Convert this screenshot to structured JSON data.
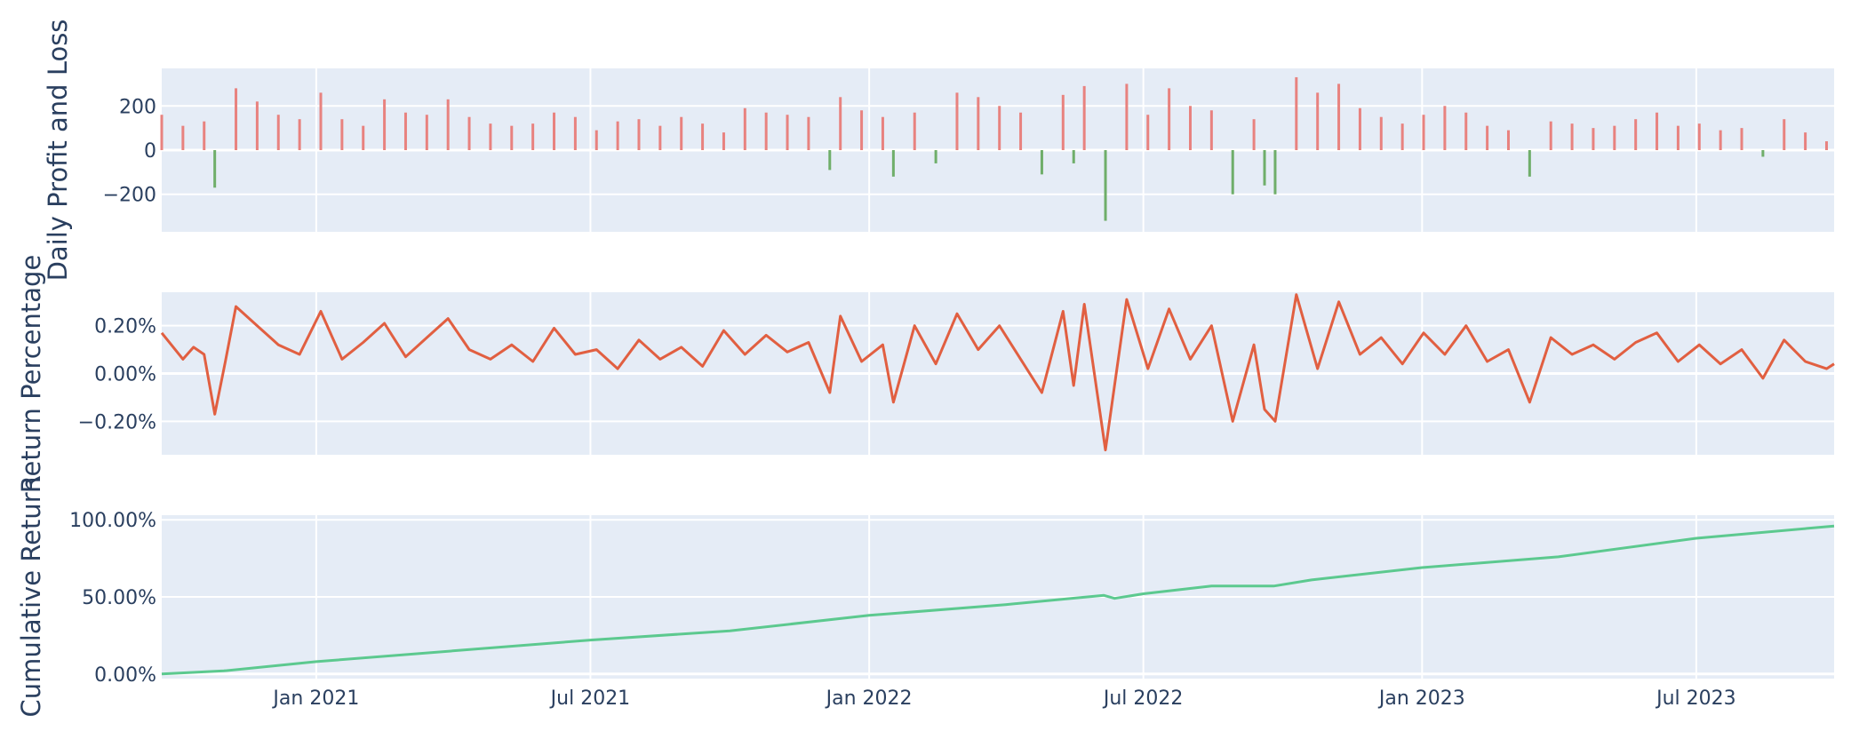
{
  "chart_data": {
    "type": "subplots",
    "shared_x": {
      "tick_labels": [
        "Jan 2021",
        "Jul 2021",
        "Jan 2022",
        "Jul 2022",
        "Jan 2023",
        "Jul 2023"
      ],
      "tick_dates": [
        "2021-01-01",
        "2021-07-01",
        "2022-01-01",
        "2022-07-01",
        "2023-01-01",
        "2023-07-01"
      ],
      "range": [
        "2020-09-21",
        "2023-09-30"
      ]
    },
    "colors": {
      "plot_bg": "#e5ecf6",
      "grid": "#ffffff",
      "profit_bar": "#e8827f",
      "loss_bar": "#6fae6a",
      "return_line": "#e15f41",
      "cumulative_line": "#5cc98f",
      "text": "#2a3f5f"
    },
    "panels": [
      {
        "id": "daily-pnl",
        "type": "bar",
        "ylabel": "Daily Profit and Loss",
        "ylim": [
          -370,
          370
        ],
        "yticks": [
          -200,
          0,
          200
        ],
        "ytick_labels": [
          "−200",
          "0",
          "200"
        ],
        "positive_color": "profit_bar",
        "negative_color": "loss_bar",
        "series": [
          {
            "x": "2020-09-21",
            "y": 160
          },
          {
            "x": "2020-10-05",
            "y": 110
          },
          {
            "x": "2020-10-19",
            "y": 130
          },
          {
            "x": "2020-10-26",
            "y": -170
          },
          {
            "x": "2020-11-09",
            "y": 280
          },
          {
            "x": "2020-11-23",
            "y": 220
          },
          {
            "x": "2020-12-07",
            "y": 160
          },
          {
            "x": "2020-12-21",
            "y": 140
          },
          {
            "x": "2021-01-04",
            "y": 260
          },
          {
            "x": "2021-01-18",
            "y": 140
          },
          {
            "x": "2021-02-01",
            "y": 110
          },
          {
            "x": "2021-02-15",
            "y": 230
          },
          {
            "x": "2021-03-01",
            "y": 170
          },
          {
            "x": "2021-03-15",
            "y": 160
          },
          {
            "x": "2021-03-29",
            "y": 230
          },
          {
            "x": "2021-04-12",
            "y": 150
          },
          {
            "x": "2021-04-26",
            "y": 120
          },
          {
            "x": "2021-05-10",
            "y": 110
          },
          {
            "x": "2021-05-24",
            "y": 120
          },
          {
            "x": "2021-06-07",
            "y": 170
          },
          {
            "x": "2021-06-21",
            "y": 150
          },
          {
            "x": "2021-07-05",
            "y": 90
          },
          {
            "x": "2021-07-19",
            "y": 130
          },
          {
            "x": "2021-08-02",
            "y": 140
          },
          {
            "x": "2021-08-16",
            "y": 110
          },
          {
            "x": "2021-08-30",
            "y": 150
          },
          {
            "x": "2021-09-13",
            "y": 120
          },
          {
            "x": "2021-09-27",
            "y": 80
          },
          {
            "x": "2021-10-11",
            "y": 190
          },
          {
            "x": "2021-10-25",
            "y": 170
          },
          {
            "x": "2021-11-08",
            "y": 160
          },
          {
            "x": "2021-11-22",
            "y": 150
          },
          {
            "x": "2021-12-06",
            "y": -90
          },
          {
            "x": "2021-12-13",
            "y": 240
          },
          {
            "x": "2021-12-27",
            "y": 180
          },
          {
            "x": "2022-01-10",
            "y": 150
          },
          {
            "x": "2022-01-17",
            "y": -120
          },
          {
            "x": "2022-01-31",
            "y": 170
          },
          {
            "x": "2022-02-14",
            "y": -60
          },
          {
            "x": "2022-02-28",
            "y": 260
          },
          {
            "x": "2022-03-14",
            "y": 240
          },
          {
            "x": "2022-03-28",
            "y": 200
          },
          {
            "x": "2022-04-11",
            "y": 170
          },
          {
            "x": "2022-04-25",
            "y": -110
          },
          {
            "x": "2022-05-09",
            "y": 250
          },
          {
            "x": "2022-05-16",
            "y": -60
          },
          {
            "x": "2022-05-23",
            "y": 290
          },
          {
            "x": "2022-06-06",
            "y": -320
          },
          {
            "x": "2022-06-20",
            "y": 300
          },
          {
            "x": "2022-07-04",
            "y": 160
          },
          {
            "x": "2022-07-18",
            "y": 280
          },
          {
            "x": "2022-08-01",
            "y": 200
          },
          {
            "x": "2022-08-15",
            "y": 180
          },
          {
            "x": "2022-08-29",
            "y": -200
          },
          {
            "x": "2022-09-12",
            "y": 140
          },
          {
            "x": "2022-09-19",
            "y": -160
          },
          {
            "x": "2022-09-26",
            "y": -200
          },
          {
            "x": "2022-10-10",
            "y": 330
          },
          {
            "x": "2022-10-24",
            "y": 260
          },
          {
            "x": "2022-11-07",
            "y": 300
          },
          {
            "x": "2022-11-21",
            "y": 190
          },
          {
            "x": "2022-12-05",
            "y": 150
          },
          {
            "x": "2022-12-19",
            "y": 120
          },
          {
            "x": "2023-01-02",
            "y": 160
          },
          {
            "x": "2023-01-16",
            "y": 200
          },
          {
            "x": "2023-01-30",
            "y": 170
          },
          {
            "x": "2023-02-13",
            "y": 110
          },
          {
            "x": "2023-02-27",
            "y": 90
          },
          {
            "x": "2023-03-13",
            "y": -120
          },
          {
            "x": "2023-03-27",
            "y": 130
          },
          {
            "x": "2023-04-10",
            "y": 120
          },
          {
            "x": "2023-04-24",
            "y": 100
          },
          {
            "x": "2023-05-08",
            "y": 110
          },
          {
            "x": "2023-05-22",
            "y": 140
          },
          {
            "x": "2023-06-05",
            "y": 170
          },
          {
            "x": "2023-06-19",
            "y": 110
          },
          {
            "x": "2023-07-03",
            "y": 120
          },
          {
            "x": "2023-07-17",
            "y": 90
          },
          {
            "x": "2023-07-31",
            "y": 100
          },
          {
            "x": "2023-08-14",
            "y": -30
          },
          {
            "x": "2023-08-28",
            "y": 140
          },
          {
            "x": "2023-09-11",
            "y": 80
          },
          {
            "x": "2023-09-25",
            "y": 40
          }
        ]
      },
      {
        "id": "daily-return",
        "type": "line",
        "ylabel": "Return Percentage",
        "ylim": [
          -0.34,
          0.34
        ],
        "yticks": [
          -0.2,
          0,
          0.2
        ],
        "ytick_labels": [
          "−0.20%",
          "0.00%",
          "0.20%"
        ],
        "color": "return_line",
        "series": [
          {
            "x": "2020-09-21",
            "y": 0.17
          },
          {
            "x": "2020-10-05",
            "y": 0.06
          },
          {
            "x": "2020-10-12",
            "y": 0.11
          },
          {
            "x": "2020-10-19",
            "y": 0.08
          },
          {
            "x": "2020-10-26",
            "y": -0.17
          },
          {
            "x": "2020-11-02",
            "y": 0.05
          },
          {
            "x": "2020-11-09",
            "y": 0.28
          },
          {
            "x": "2020-11-23",
            "y": 0.2
          },
          {
            "x": "2020-12-07",
            "y": 0.12
          },
          {
            "x": "2020-12-21",
            "y": 0.08
          },
          {
            "x": "2021-01-04",
            "y": 0.26
          },
          {
            "x": "2021-01-18",
            "y": 0.06
          },
          {
            "x": "2021-02-01",
            "y": 0.13
          },
          {
            "x": "2021-02-15",
            "y": 0.21
          },
          {
            "x": "2021-03-01",
            "y": 0.07
          },
          {
            "x": "2021-03-15",
            "y": 0.15
          },
          {
            "x": "2021-03-29",
            "y": 0.23
          },
          {
            "x": "2021-04-12",
            "y": 0.1
          },
          {
            "x": "2021-04-26",
            "y": 0.06
          },
          {
            "x": "2021-05-10",
            "y": 0.12
          },
          {
            "x": "2021-05-24",
            "y": 0.05
          },
          {
            "x": "2021-06-07",
            "y": 0.19
          },
          {
            "x": "2021-06-21",
            "y": 0.08
          },
          {
            "x": "2021-07-05",
            "y": 0.1
          },
          {
            "x": "2021-07-19",
            "y": 0.02
          },
          {
            "x": "2021-08-02",
            "y": 0.14
          },
          {
            "x": "2021-08-16",
            "y": 0.06
          },
          {
            "x": "2021-08-30",
            "y": 0.11
          },
          {
            "x": "2021-09-13",
            "y": 0.03
          },
          {
            "x": "2021-09-27",
            "y": 0.18
          },
          {
            "x": "2021-10-11",
            "y": 0.08
          },
          {
            "x": "2021-10-25",
            "y": 0.16
          },
          {
            "x": "2021-11-08",
            "y": 0.09
          },
          {
            "x": "2021-11-22",
            "y": 0.13
          },
          {
            "x": "2021-12-06",
            "y": -0.08
          },
          {
            "x": "2021-12-13",
            "y": 0.24
          },
          {
            "x": "2021-12-27",
            "y": 0.05
          },
          {
            "x": "2022-01-10",
            "y": 0.12
          },
          {
            "x": "2022-01-17",
            "y": -0.12
          },
          {
            "x": "2022-01-31",
            "y": 0.2
          },
          {
            "x": "2022-02-14",
            "y": 0.04
          },
          {
            "x": "2022-02-28",
            "y": 0.25
          },
          {
            "x": "2022-03-14",
            "y": 0.1
          },
          {
            "x": "2022-03-28",
            "y": 0.2
          },
          {
            "x": "2022-04-11",
            "y": 0.06
          },
          {
            "x": "2022-04-25",
            "y": -0.08
          },
          {
            "x": "2022-05-09",
            "y": 0.26
          },
          {
            "x": "2022-05-16",
            "y": -0.05
          },
          {
            "x": "2022-05-23",
            "y": 0.29
          },
          {
            "x": "2022-06-06",
            "y": -0.32
          },
          {
            "x": "2022-06-20",
            "y": 0.31
          },
          {
            "x": "2022-07-04",
            "y": 0.02
          },
          {
            "x": "2022-07-18",
            "y": 0.27
          },
          {
            "x": "2022-08-01",
            "y": 0.06
          },
          {
            "x": "2022-08-15",
            "y": 0.2
          },
          {
            "x": "2022-08-29",
            "y": -0.2
          },
          {
            "x": "2022-09-12",
            "y": 0.12
          },
          {
            "x": "2022-09-19",
            "y": -0.15
          },
          {
            "x": "2022-09-26",
            "y": -0.2
          },
          {
            "x": "2022-10-10",
            "y": 0.33
          },
          {
            "x": "2022-10-24",
            "y": 0.02
          },
          {
            "x": "2022-11-07",
            "y": 0.3
          },
          {
            "x": "2022-11-21",
            "y": 0.08
          },
          {
            "x": "2022-12-05",
            "y": 0.15
          },
          {
            "x": "2022-12-19",
            "y": 0.04
          },
          {
            "x": "2023-01-02",
            "y": 0.17
          },
          {
            "x": "2023-01-16",
            "y": 0.08
          },
          {
            "x": "2023-01-30",
            "y": 0.2
          },
          {
            "x": "2023-02-13",
            "y": 0.05
          },
          {
            "x": "2023-02-27",
            "y": 0.1
          },
          {
            "x": "2023-03-13",
            "y": -0.12
          },
          {
            "x": "2023-03-27",
            "y": 0.15
          },
          {
            "x": "2023-04-10",
            "y": 0.08
          },
          {
            "x": "2023-04-24",
            "y": 0.12
          },
          {
            "x": "2023-05-08",
            "y": 0.06
          },
          {
            "x": "2023-05-22",
            "y": 0.13
          },
          {
            "x": "2023-06-05",
            "y": 0.17
          },
          {
            "x": "2023-06-19",
            "y": 0.05
          },
          {
            "x": "2023-07-03",
            "y": 0.12
          },
          {
            "x": "2023-07-17",
            "y": 0.04
          },
          {
            "x": "2023-07-31",
            "y": 0.1
          },
          {
            "x": "2023-08-14",
            "y": -0.02
          },
          {
            "x": "2023-08-28",
            "y": 0.14
          },
          {
            "x": "2023-09-11",
            "y": 0.05
          },
          {
            "x": "2023-09-25",
            "y": 0.02
          },
          {
            "x": "2023-09-30",
            "y": 0.04
          }
        ]
      },
      {
        "id": "cumulative-return",
        "type": "line",
        "ylabel": "Cumulative Return",
        "ylim": [
          -3,
          103
        ],
        "yticks": [
          0,
          50,
          100
        ],
        "ytick_labels": [
          "0.00%",
          "50.00%",
          "100.00%"
        ],
        "color": "cumulative_line",
        "series": [
          {
            "x": "2020-09-21",
            "y": 0
          },
          {
            "x": "2020-11-01",
            "y": 2
          },
          {
            "x": "2021-01-01",
            "y": 8
          },
          {
            "x": "2021-04-01",
            "y": 15
          },
          {
            "x": "2021-07-01",
            "y": 22
          },
          {
            "x": "2021-10-01",
            "y": 28
          },
          {
            "x": "2022-01-01",
            "y": 38
          },
          {
            "x": "2022-04-01",
            "y": 45
          },
          {
            "x": "2022-06-05",
            "y": 51
          },
          {
            "x": "2022-06-12",
            "y": 49
          },
          {
            "x": "2022-07-01",
            "y": 52
          },
          {
            "x": "2022-08-15",
            "y": 57
          },
          {
            "x": "2022-09-25",
            "y": 57
          },
          {
            "x": "2022-10-20",
            "y": 61
          },
          {
            "x": "2023-01-01",
            "y": 69
          },
          {
            "x": "2023-04-01",
            "y": 76
          },
          {
            "x": "2023-07-01",
            "y": 88
          },
          {
            "x": "2023-09-30",
            "y": 96
          }
        ]
      }
    ]
  }
}
